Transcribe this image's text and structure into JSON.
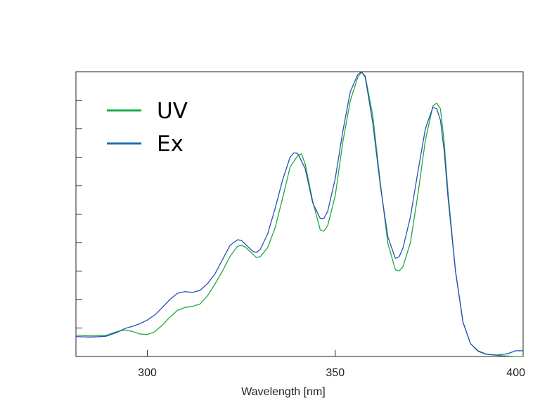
{
  "chart_data": {
    "type": "line",
    "xlabel": "Wavelength [nm]",
    "ylabel": "",
    "xlim": [
      281,
      400
    ],
    "ylim": [
      0,
      1.0
    ],
    "x_ticks": [
      300,
      350,
      400
    ],
    "x_tick_labels": [
      "300",
      "350",
      "400"
    ],
    "y_ticks": [
      0.1,
      0.2,
      0.3,
      0.4,
      0.5,
      0.6,
      0.7,
      0.8,
      0.9
    ],
    "y_tick_labels": [],
    "grid": false,
    "legend_position": "top-left",
    "series": [
      {
        "name": "UV",
        "color": "#22a83c",
        "points": [
          [
            281,
            0.075
          ],
          [
            285,
            0.072
          ],
          [
            289,
            0.074
          ],
          [
            292,
            0.088
          ],
          [
            294,
            0.093
          ],
          [
            296,
            0.088
          ],
          [
            298,
            0.079
          ],
          [
            300,
            0.077
          ],
          [
            302,
            0.087
          ],
          [
            304,
            0.11
          ],
          [
            306,
            0.138
          ],
          [
            308,
            0.162
          ],
          [
            310,
            0.172
          ],
          [
            312,
            0.176
          ],
          [
            314,
            0.184
          ],
          [
            316,
            0.213
          ],
          [
            318,
            0.254
          ],
          [
            320,
            0.3
          ],
          [
            322,
            0.351
          ],
          [
            324,
            0.387
          ],
          [
            325,
            0.39
          ],
          [
            326,
            0.385
          ],
          [
            328,
            0.36
          ],
          [
            329,
            0.348
          ],
          [
            330,
            0.35
          ],
          [
            332,
            0.382
          ],
          [
            334,
            0.452
          ],
          [
            336,
            0.556
          ],
          [
            338,
            0.665
          ],
          [
            340,
            0.705
          ],
          [
            341,
            0.712
          ],
          [
            342,
            0.676
          ],
          [
            344,
            0.546
          ],
          [
            346,
            0.445
          ],
          [
            347,
            0.44
          ],
          [
            348,
            0.46
          ],
          [
            350,
            0.565
          ],
          [
            352,
            0.752
          ],
          [
            354,
            0.898
          ],
          [
            356,
            0.98
          ],
          [
            357,
            0.998
          ],
          [
            358,
            0.985
          ],
          [
            360,
            0.845
          ],
          [
            362,
            0.61
          ],
          [
            364,
            0.397
          ],
          [
            366,
            0.305
          ],
          [
            367,
            0.3
          ],
          [
            368,
            0.315
          ],
          [
            370,
            0.4
          ],
          [
            372,
            0.57
          ],
          [
            374,
            0.76
          ],
          [
            376,
            0.88
          ],
          [
            377,
            0.89
          ],
          [
            378,
            0.87
          ],
          [
            379,
            0.75
          ],
          [
            380,
            0.58
          ],
          [
            382,
            0.3
          ],
          [
            384,
            0.12
          ],
          [
            386,
            0.045
          ],
          [
            388,
            0.018
          ],
          [
            390,
            0.008
          ],
          [
            394,
            0.003
          ],
          [
            398,
            0.0
          ],
          [
            400,
            0.0
          ]
        ]
      },
      {
        "name": "Ex",
        "color": "#2a4fb8",
        "points": [
          [
            281,
            0.07
          ],
          [
            285,
            0.068
          ],
          [
            289,
            0.071
          ],
          [
            292,
            0.085
          ],
          [
            294,
            0.098
          ],
          [
            296,
            0.106
          ],
          [
            298,
            0.115
          ],
          [
            300,
            0.128
          ],
          [
            302,
            0.146
          ],
          [
            304,
            0.172
          ],
          [
            306,
            0.2
          ],
          [
            308,
            0.222
          ],
          [
            310,
            0.228
          ],
          [
            312,
            0.225
          ],
          [
            314,
            0.232
          ],
          [
            316,
            0.256
          ],
          [
            318,
            0.29
          ],
          [
            320,
            0.34
          ],
          [
            322,
            0.39
          ],
          [
            324,
            0.41
          ],
          [
            325,
            0.408
          ],
          [
            326,
            0.395
          ],
          [
            328,
            0.37
          ],
          [
            329,
            0.365
          ],
          [
            330,
            0.375
          ],
          [
            332,
            0.43
          ],
          [
            334,
            0.52
          ],
          [
            336,
            0.62
          ],
          [
            338,
            0.7
          ],
          [
            339,
            0.715
          ],
          [
            340,
            0.713
          ],
          [
            342,
            0.66
          ],
          [
            344,
            0.54
          ],
          [
            346,
            0.485
          ],
          [
            347,
            0.485
          ],
          [
            348,
            0.51
          ],
          [
            350,
            0.625
          ],
          [
            352,
            0.79
          ],
          [
            354,
            0.93
          ],
          [
            356,
            0.99
          ],
          [
            357,
            1.0
          ],
          [
            358,
            0.98
          ],
          [
            360,
            0.82
          ],
          [
            362,
            0.6
          ],
          [
            364,
            0.42
          ],
          [
            366,
            0.345
          ],
          [
            367,
            0.35
          ],
          [
            368,
            0.38
          ],
          [
            370,
            0.49
          ],
          [
            372,
            0.65
          ],
          [
            374,
            0.8
          ],
          [
            376,
            0.875
          ],
          [
            377,
            0.87
          ],
          [
            378,
            0.83
          ],
          [
            379,
            0.72
          ],
          [
            380,
            0.56
          ],
          [
            382,
            0.3
          ],
          [
            384,
            0.12
          ],
          [
            386,
            0.045
          ],
          [
            388,
            0.02
          ],
          [
            390,
            0.009
          ],
          [
            393,
            0.005
          ],
          [
            396,
            0.01
          ],
          [
            398,
            0.02
          ],
          [
            400,
            0.02
          ]
        ]
      }
    ]
  }
}
